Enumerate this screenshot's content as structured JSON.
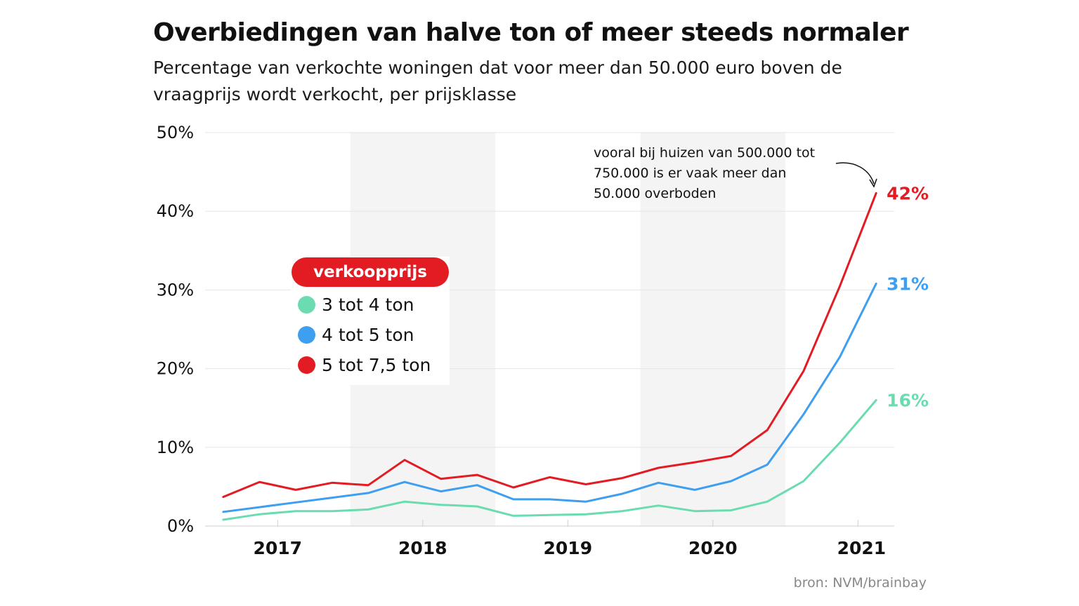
{
  "title": "Overbiedingen van halve ton of meer steeds normaler",
  "subtitle": "Percentage van verkochte woningen dat voor meer dan 50.000 euro boven de vraagprijs wordt verkocht, per prijsklasse",
  "source": "bron: NVM/brainbay",
  "legend": {
    "header": "verkoopprijs",
    "items": [
      {
        "label": "3 tot 4 ton",
        "color": "#6bdcaf"
      },
      {
        "label": "4 tot 5 ton",
        "color": "#3e9ef0"
      },
      {
        "label": "5 tot 7,5 ton",
        "color": "#e31b23"
      }
    ]
  },
  "annotation": {
    "lines": [
      "vooral bij huizen van 500.000 tot",
      "750.000 is er vaak meer dan",
      "50.000 overboden"
    ]
  },
  "chart_data": {
    "type": "line",
    "title": "Overbiedingen van halve ton of meer steeds normaler",
    "xlabel": "",
    "ylabel": "",
    "ylim": [
      0,
      50
    ],
    "yticks": [
      0,
      10,
      20,
      30,
      40,
      50
    ],
    "ytick_labels": [
      "0%",
      "10%",
      "20%",
      "30%",
      "40%",
      "50%"
    ],
    "x_range": [
      2016.5,
      2021.25
    ],
    "year_labels": [
      {
        "label": "2017",
        "x": 2017
      },
      {
        "label": "2018",
        "x": 2018
      },
      {
        "label": "2019",
        "x": 2019
      },
      {
        "label": "2020",
        "x": 2020
      },
      {
        "label": "2021",
        "x": 2021
      }
    ],
    "shaded_years": [
      [
        2017.5,
        2018.5
      ],
      [
        2019.5,
        2020.5
      ]
    ],
    "x": [
      2016.625,
      2016.875,
      2017.125,
      2017.375,
      2017.625,
      2017.875,
      2018.125,
      2018.375,
      2018.625,
      2018.875,
      2019.125,
      2019.375,
      2019.625,
      2019.875,
      2020.125,
      2020.375,
      2020.625,
      2020.875,
      2021.125
    ],
    "series": [
      {
        "name": "3 tot 4 ton",
        "color": "#6bdcaf",
        "end_label": "16%",
        "values": [
          0.8,
          1.5,
          1.9,
          1.9,
          2.1,
          3.1,
          2.7,
          2.5,
          1.3,
          1.4,
          1.5,
          1.9,
          2.6,
          1.9,
          2.0,
          3.1,
          5.7,
          10.6,
          16.0
        ]
      },
      {
        "name": "4 tot 5 ton",
        "color": "#3e9ef0",
        "end_label": "31%",
        "values": [
          1.8,
          2.4,
          3.0,
          3.6,
          4.2,
          5.6,
          4.4,
          5.2,
          3.4,
          3.4,
          3.1,
          4.1,
          5.5,
          4.6,
          5.7,
          7.8,
          14.2,
          21.5,
          30.8
        ]
      },
      {
        "name": "5 tot 7,5 ton",
        "color": "#e31b23",
        "end_label": "42%",
        "values": [
          3.7,
          5.6,
          4.6,
          5.5,
          5.2,
          8.4,
          6.0,
          6.5,
          4.9,
          6.2,
          5.3,
          6.1,
          7.4,
          8.1,
          8.9,
          12.2,
          19.7,
          30.5,
          42.3
        ]
      }
    ]
  }
}
